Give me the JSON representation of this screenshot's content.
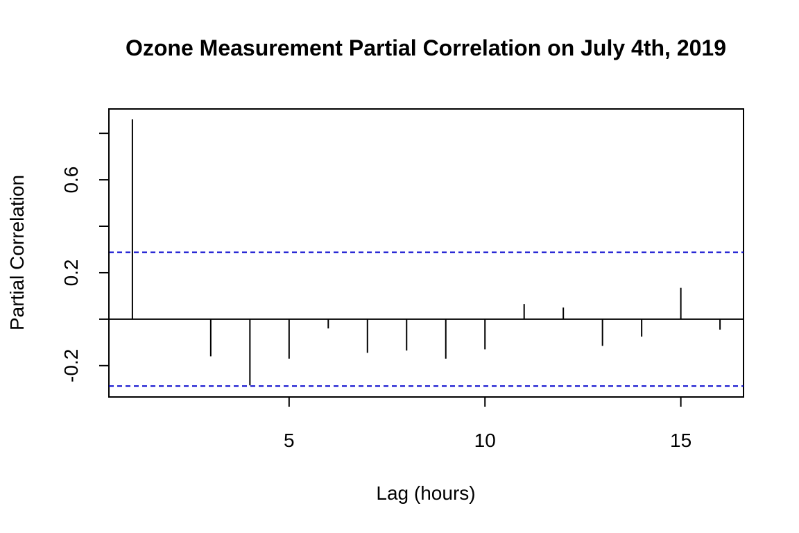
{
  "chart_data": {
    "type": "bar",
    "title": "Ozone Measurement Partial Correlation on July 4th, 2019",
    "xlabel": "Lag (hours)",
    "ylabel": "Partial Correlation",
    "x": [
      1,
      2,
      3,
      4,
      5,
      6,
      7,
      8,
      9,
      10,
      11,
      12,
      13,
      14,
      15,
      16
    ],
    "values": [
      0.86,
      0.0,
      -0.16,
      -0.285,
      -0.17,
      -0.04,
      -0.145,
      -0.135,
      -0.17,
      -0.13,
      0.065,
      0.05,
      -0.115,
      -0.075,
      0.135,
      -0.045
    ],
    "xlim": [
      0.4,
      16.6
    ],
    "ylim": [
      -0.335,
      0.905
    ],
    "xticks": [
      5,
      10,
      15
    ],
    "xtick_labels": [
      "5",
      "10",
      "15"
    ],
    "yticks": [
      -0.2,
      0.0,
      0.2,
      0.4,
      0.6,
      0.8
    ],
    "ytick_labels": [
      "-0.2",
      "",
      "0.2",
      "",
      "0.6",
      ""
    ],
    "confidence_bound": 0.288,
    "zero_line": true,
    "grid": false,
    "colors": {
      "spikes": "#000000",
      "confidence": "#0000cc",
      "axes": "#000000"
    }
  }
}
